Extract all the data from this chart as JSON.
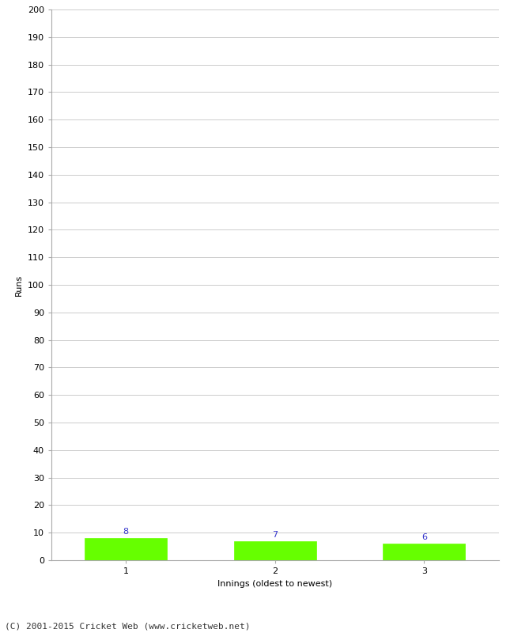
{
  "categories": [
    1,
    2,
    3
  ],
  "values": [
    8,
    7,
    6
  ],
  "bar_color": "#66ff00",
  "bar_edge_color": "#66ff00",
  "value_label_color": "#3333cc",
  "xlabel": "Innings (oldest to newest)",
  "ylabel": "Runs",
  "ylim": [
    0,
    200
  ],
  "ytick_step": 10,
  "footnote": "(C) 2001-2015 Cricket Web (www.cricketweb.net)",
  "background_color": "#ffffff",
  "grid_color": "#cccccc",
  "value_fontsize": 8,
  "axis_fontsize": 8,
  "label_fontsize": 8,
  "footnote_fontsize": 8
}
